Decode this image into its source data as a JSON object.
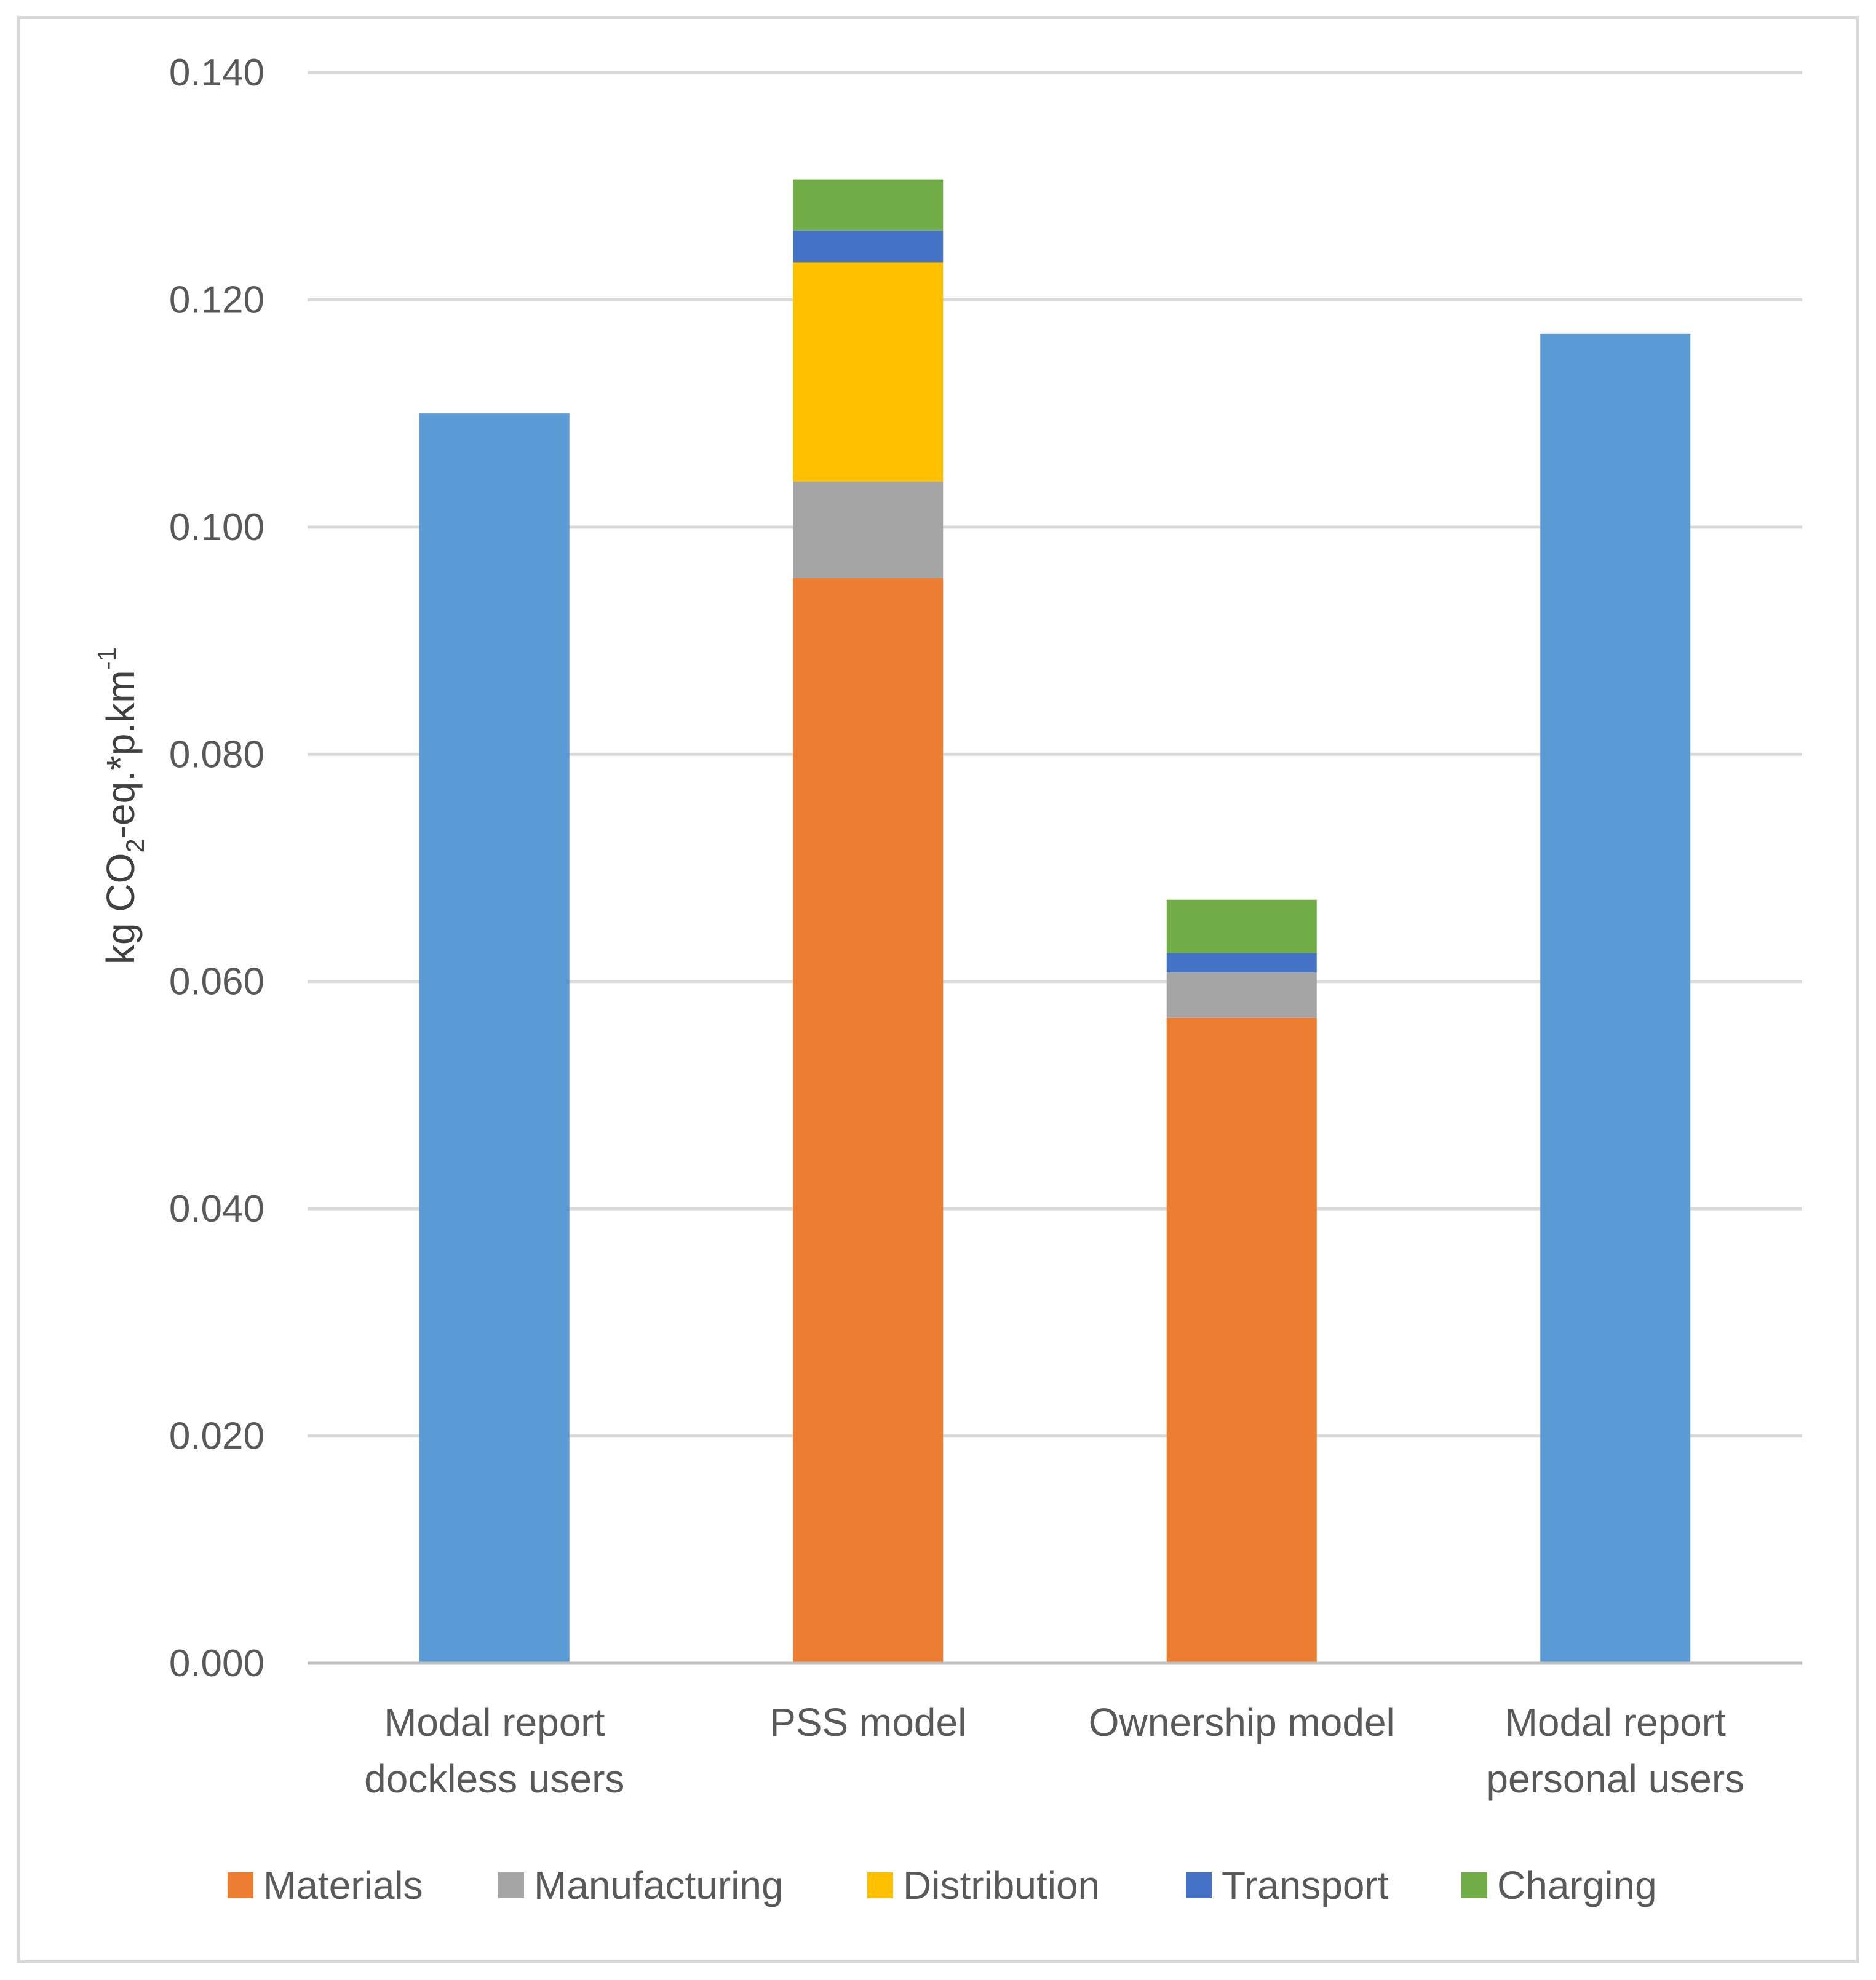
{
  "chart_data": {
    "type": "bar",
    "stacked": true,
    "title": "",
    "xlabel": "",
    "ylabel": {
      "prefix": "kg CO",
      "subscript": "2",
      "middle": "-eq.*p.km",
      "superscript": "-1"
    },
    "ylim": [
      0,
      0.14
    ],
    "yticks": [
      "0.000",
      "0.020",
      "0.040",
      "0.060",
      "0.080",
      "0.100",
      "0.120",
      "0.140"
    ],
    "ytick_values": [
      0,
      0.02,
      0.04,
      0.06,
      0.08,
      0.1,
      0.12,
      0.14
    ],
    "grid": true,
    "legend_position": "bottom",
    "categories": [
      [
        "Modal report",
        "dockless users"
      ],
      [
        "PSS model"
      ],
      [
        "Ownership model"
      ],
      [
        "Modal report",
        "personal users"
      ]
    ],
    "total_bars": {
      "color": "#5b9bd5",
      "values": [
        0.11,
        null,
        null,
        0.117
      ]
    },
    "series": [
      {
        "name": "Materials",
        "color": "#ed7d31",
        "values": [
          null,
          0.0955,
          0.0568,
          null
        ]
      },
      {
        "name": "Manufacturing",
        "color": "#a5a5a5",
        "values": [
          null,
          0.0085,
          0.004,
          null
        ]
      },
      {
        "name": "Distribution",
        "color": "#ffc000",
        "values": [
          null,
          0.0193,
          0,
          null
        ]
      },
      {
        "name": "Transport",
        "color": "#4472c4",
        "values": [
          null,
          0.0028,
          0.0017,
          null
        ]
      },
      {
        "name": "Charging",
        "color": "#70ad47",
        "values": [
          null,
          0.0045,
          0.0047,
          null
        ]
      }
    ]
  }
}
